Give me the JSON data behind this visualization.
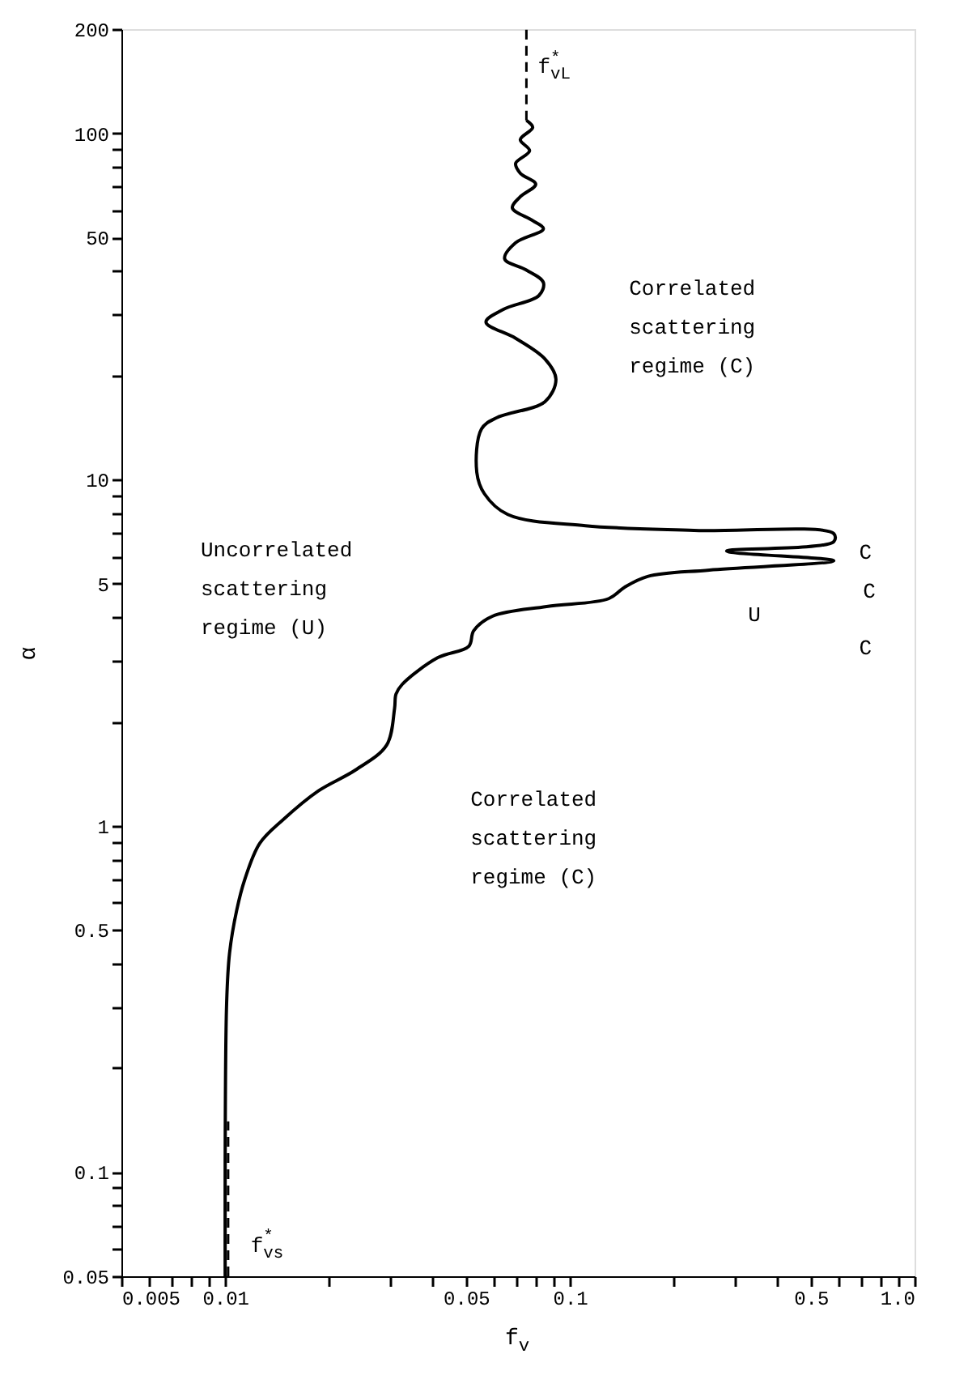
{
  "chart_data": {
    "type": "line",
    "xlabel": "f$_{v}$",
    "ylabel": "α",
    "log": "xy",
    "grid": false,
    "marker": "none",
    "xlim": [
      0.005,
      1.0
    ],
    "ylim": [
      0.05,
      200
    ],
    "xticks": [
      0.005,
      {
        "value": 0.006,
        "label": null
      },
      {
        "value": 0.007,
        "label": null
      },
      {
        "value": 0.008,
        "label": null
      },
      {
        "value": 0.009,
        "label": null
      },
      0.01,
      {
        "value": 0.02,
        "label": null
      },
      {
        "value": 0.03,
        "label": null
      },
      {
        "value": 0.04,
        "label": null
      },
      0.05,
      {
        "value": 0.06,
        "label": null
      },
      {
        "value": 0.07,
        "label": null
      },
      {
        "value": 0.08,
        "label": null
      },
      {
        "value": 0.09,
        "label": null
      },
      0.1,
      {
        "value": 0.2,
        "label": null
      },
      {
        "value": 0.3,
        "label": null
      },
      {
        "value": 0.4,
        "label": null
      },
      0.5,
      {
        "value": 0.6,
        "label": null
      },
      {
        "value": 0.7,
        "label": null
      },
      {
        "value": 0.8,
        "label": null
      },
      {
        "value": 0.9,
        "label": null
      },
      {
        "value": 1.0,
        "label": "1.0"
      }
    ],
    "yticks": [
      0.05,
      {
        "value": 0.06,
        "label": null
      },
      {
        "value": 0.07,
        "label": null
      },
      {
        "value": 0.08,
        "label": null
      },
      {
        "value": 0.09,
        "label": null
      },
      0.1,
      {
        "value": 0.2,
        "label": null
      },
      {
        "value": 0.3,
        "label": null
      },
      {
        "value": 0.4,
        "label": null
      },
      0.5,
      {
        "value": 0.6,
        "label": null
      },
      {
        "value": 0.7,
        "label": null
      },
      {
        "value": 0.8,
        "label": null
      },
      {
        "value": 0.9,
        "label": null
      },
      1,
      {
        "value": 2,
        "label": null
      },
      {
        "value": 3,
        "label": null
      },
      {
        "value": 4,
        "label": null
      },
      5,
      {
        "value": 6,
        "label": null
      },
      {
        "value": 7,
        "label": null
      },
      {
        "value": 8,
        "label": null
      },
      {
        "value": 9,
        "label": null
      },
      10,
      {
        "value": 20,
        "label": null
      },
      {
        "value": 30,
        "label": null
      },
      {
        "value": 40,
        "label": null
      },
      50,
      {
        "value": 60,
        "label": null
      },
      {
        "value": 70,
        "label": null
      },
      {
        "value": 80,
        "label": null
      },
      {
        "value": 90,
        "label": null
      },
      100,
      200
    ],
    "series": [
      {
        "color": "#000000",
        "line_style": "solid",
        "x": [
          0.01,
          0.0101,
          0.0103,
          0.0108,
          0.0114,
          0.0126,
          0.0147,
          0.0186,
          0.0239,
          0.0294,
          0.031,
          0.0313,
          0.0326,
          0.0414,
          0.0509,
          0.0526,
          0.0596,
          0.0856,
          0.1296,
          0.1438,
          0.168,
          0.254,
          0.583,
          0.285,
          0.583,
          0.583,
          0.229,
          0.111,
          0.066,
          0.0565,
          0.0537,
          0.0554,
          0.0614,
          0.0847,
          0.0911,
          0.0847,
          0.0696,
          0.0571,
          0.064,
          0.0813,
          0.0838,
          0.0748,
          0.0647,
          0.0696,
          0.0838,
          0.078,
          0.0681,
          0.0718,
          0.0796,
          0.0718,
          0.0696,
          0.0764,
          0.0718,
          0.078,
          0.0748
        ],
        "values": [
          0.05,
          0.31,
          0.43,
          0.57,
          0.7,
          0.89,
          1.04,
          1.26,
          1.45,
          1.71,
          2.18,
          2.4,
          2.56,
          3.06,
          3.3,
          3.66,
          4.03,
          4.3,
          4.53,
          4.88,
          5.25,
          5.48,
          5.83,
          6.22,
          6.62,
          6.98,
          7.13,
          7.36,
          7.93,
          9.1,
          10.5,
          14.0,
          15.1,
          16.8,
          19.5,
          22.3,
          25.6,
          28.5,
          31.0,
          34.0,
          37.1,
          40.3,
          43.4,
          48.3,
          53.0,
          56.0,
          60.9,
          65.6,
          71.3,
          76.7,
          81.9,
          89.1,
          95.9,
          104,
          109
        ]
      },
      {
        "color": "#000000",
        "line_style": "dashed",
        "x": [
          0.0748,
          0.0748
        ],
        "values": [
          109,
          200
        ]
      },
      {
        "color": "#000000",
        "line_style": "dashed",
        "x": [
          0.0102,
          0.0102
        ],
        "values": [
          0.05,
          0.14
        ]
      }
    ],
    "annotations": [
      "Correlated\nscattering\nregime (C)",
      "Uncorrelated\nscattering\nregime (U)",
      "Correlated\nscattering\nregime (C)",
      "f$^{*}$$_{vL}$",
      "f$^{*}$$_{vs}$",
      "C",
      "C",
      "C",
      "U"
    ]
  }
}
